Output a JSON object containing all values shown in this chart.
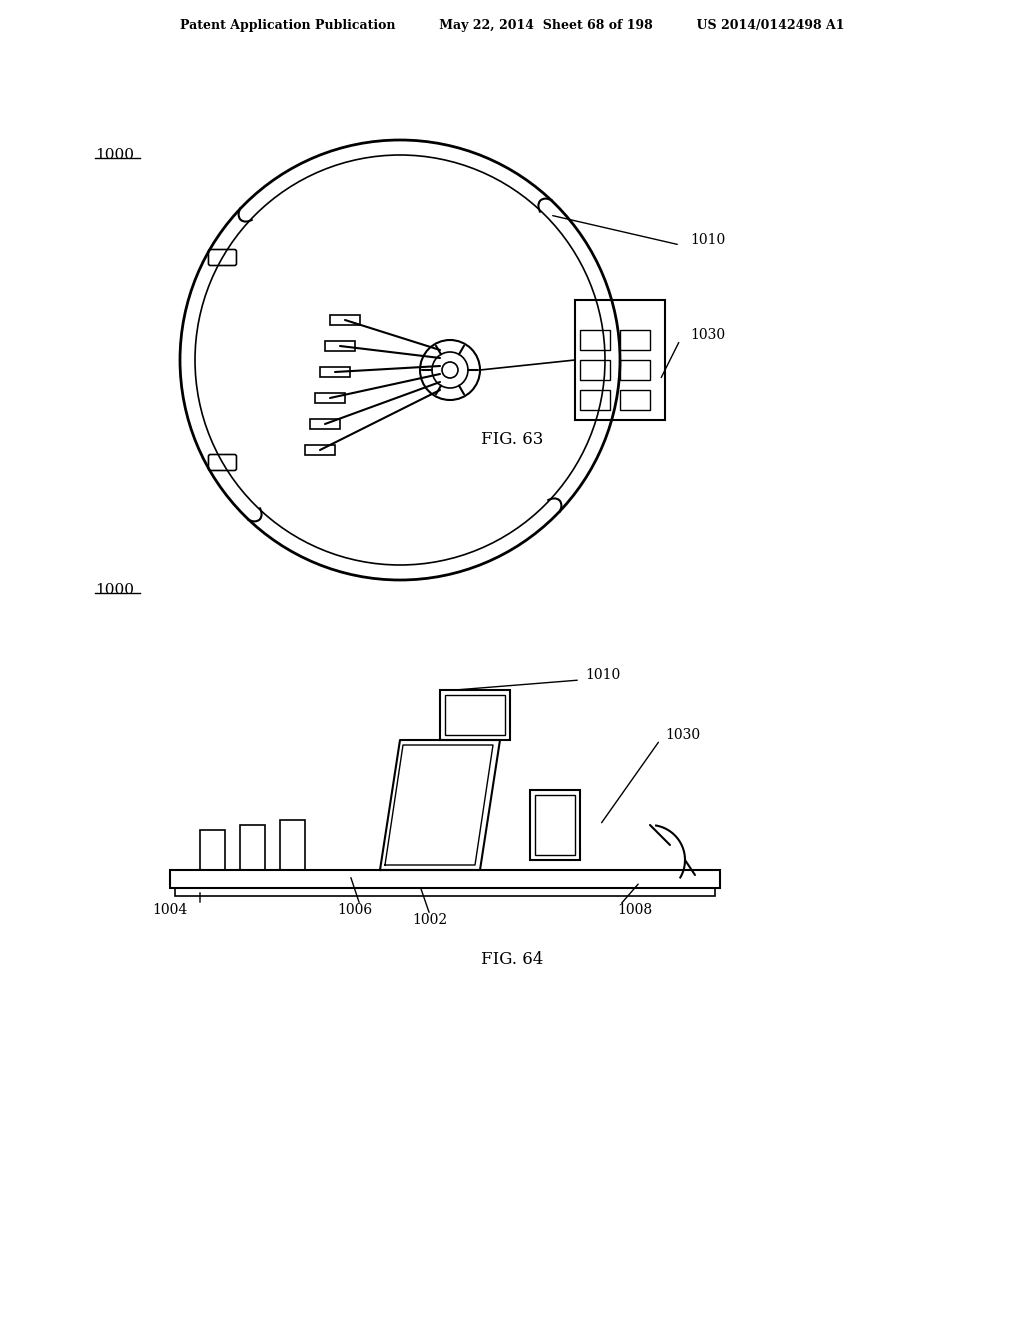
{
  "title_left": "Patent Application Publication",
  "title_mid": "May 22, 2014  Sheet 68 of 198",
  "title_right": "US 2014/0142498 A1",
  "fig63_label": "FIG. 63",
  "fig64_label": "FIG. 64",
  "label_1000_top": "1000",
  "label_1000_bot": "1000",
  "label_1010_top": "1010",
  "label_1030_top": "1030",
  "label_1010_bot": "1010",
  "label_1030_bot": "1030",
  "label_1002": "1002",
  "label_1004": "1004",
  "label_1006": "1006",
  "label_1008": "1008",
  "bg_color": "#ffffff",
  "line_color": "#000000"
}
